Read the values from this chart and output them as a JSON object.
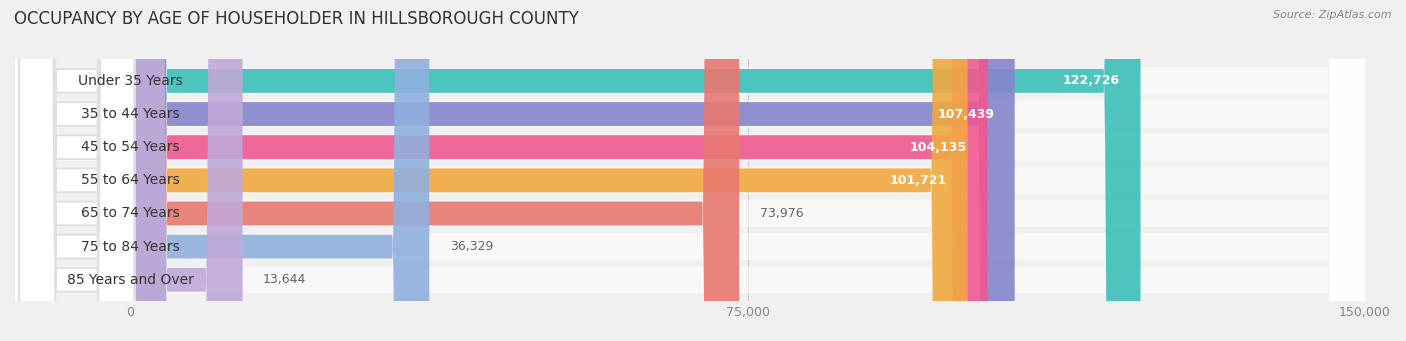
{
  "title": "OCCUPANCY BY AGE OF HOUSEHOLDER IN HILLSBOROUGH COUNTY",
  "source": "Source: ZipAtlas.com",
  "categories": [
    "Under 35 Years",
    "35 to 44 Years",
    "45 to 54 Years",
    "55 to 64 Years",
    "65 to 74 Years",
    "75 to 84 Years",
    "85 Years and Over"
  ],
  "values": [
    122726,
    107439,
    104135,
    101721,
    73976,
    36329,
    13644
  ],
  "bar_colors": [
    "#3bbfb8",
    "#8585cc",
    "#f05890",
    "#f0a840",
    "#e87870",
    "#90b0e0",
    "#c0a8d8"
  ],
  "xlim": [
    0,
    150000
  ],
  "xticks": [
    0,
    75000,
    150000
  ],
  "xticklabels": [
    "0",
    "75,000",
    "150,000"
  ],
  "title_fontsize": 12,
  "label_fontsize": 10,
  "value_fontsize": 9,
  "background_color": "#f0f0f0",
  "bar_height": 0.72,
  "row_bg_color": "#f8f8f8"
}
